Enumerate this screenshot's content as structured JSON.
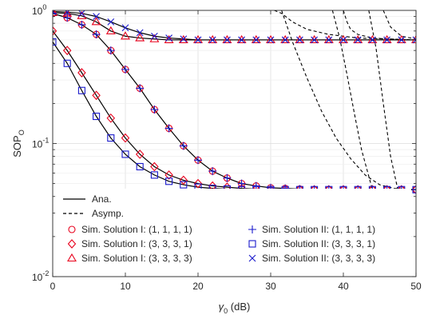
{
  "chart_data": {
    "type": "line",
    "xlabel": "γ₀ (dB)",
    "xlabel_symbol": "γ",
    "xlabel_sub": "0",
    "xlabel_unit": " (dB)",
    "ylabel": "SOP_O",
    "ylabel_main": "SOP",
    "ylabel_sub": "O",
    "xlim": [
      0,
      50
    ],
    "ylim": [
      0.01,
      1
    ],
    "yscale": "log",
    "grid": true,
    "legend_position": "bottom-left",
    "x_ticks": [
      0,
      10,
      20,
      30,
      40,
      50
    ],
    "x_tick_labels": [
      "0",
      "10",
      "20",
      "30",
      "40",
      "50"
    ],
    "y_ticks": [
      1,
      0.1,
      0.01
    ],
    "y_tick_labels": [
      {
        "base": "10",
        "exp": "0"
      },
      {
        "base": "10",
        "exp": "-1"
      },
      {
        "base": "10",
        "exp": "-2"
      }
    ],
    "x": [
      0,
      2,
      4,
      6,
      8,
      10,
      12,
      14,
      16,
      18,
      20,
      22,
      24,
      26,
      28,
      30,
      32,
      34,
      36,
      38,
      40,
      42,
      44,
      46,
      48,
      50
    ],
    "series": [
      {
        "name": "Ana.",
        "style": "analytic",
        "line": "solid",
        "curves": [
          {
            "key": "c1",
            "values": [
              0.96,
              0.95,
              0.91,
              0.82,
              0.7,
              0.64,
              0.62,
              0.61,
              0.6,
              0.6,
              0.6,
              0.6,
              0.6,
              0.6,
              0.6,
              0.6,
              0.6,
              0.6,
              0.6,
              0.6,
              0.6,
              0.6,
              0.6,
              0.6,
              0.6,
              0.6
            ]
          },
          {
            "key": "c2",
            "values": [
              0.98,
              0.97,
              0.95,
              0.9,
              0.82,
              0.74,
              0.68,
              0.64,
              0.62,
              0.61,
              0.6,
              0.6,
              0.6,
              0.6,
              0.6,
              0.6,
              0.6,
              0.6,
              0.6,
              0.6,
              0.6,
              0.6,
              0.6,
              0.6,
              0.6,
              0.6
            ]
          },
          {
            "key": "c3",
            "values": [
              0.95,
              0.88,
              0.78,
              0.66,
              0.5,
              0.36,
              0.26,
              0.18,
              0.13,
              0.096,
              0.075,
              0.062,
              0.055,
              0.05,
              0.048,
              0.0465,
              0.046,
              0.0455,
              0.045,
              0.045,
              0.045,
              0.045,
              0.045,
              0.045,
              0.045,
              0.045
            ]
          },
          {
            "key": "c4",
            "values": [
              0.7,
              0.5,
              0.34,
              0.23,
              0.155,
              0.11,
              0.083,
              0.067,
              0.058,
              0.053,
              0.05,
              0.048,
              0.047,
              0.046,
              0.0455,
              0.045,
              0.045,
              0.045,
              0.045,
              0.045,
              0.045,
              0.045,
              0.045,
              0.045,
              0.045,
              0.045
            ]
          },
          {
            "key": "c5",
            "values": [
              0.58,
              0.4,
              0.25,
              0.16,
              0.11,
              0.083,
              0.067,
              0.058,
              0.052,
              0.049,
              0.047,
              0.046,
              0.0455,
              0.045,
              0.045,
              0.045,
              0.045,
              0.045,
              0.045,
              0.045,
              0.045,
              0.045,
              0.045,
              0.045,
              0.045,
              0.045
            ]
          }
        ]
      },
      {
        "name": "Asymp.",
        "style": "asymptotic",
        "line": "dashed",
        "curves": [
          {
            "key": "a1",
            "x": [
              31.5,
              33,
              35,
              37,
              39,
              41,
              43,
              45,
              47,
              50
            ],
            "values": [
              1.0,
              0.58,
              0.31,
              0.175,
              0.11,
              0.077,
              0.058,
              0.049,
              0.046,
              0.045
            ]
          },
          {
            "key": "a2",
            "x": [
              30.5,
              31.5,
              33,
              35,
              38,
              42,
              46,
              50
            ],
            "values": [
              1.0,
              0.95,
              0.82,
              0.72,
              0.66,
              0.62,
              0.61,
              0.6
            ]
          },
          {
            "key": "a3",
            "x": [
              38.5,
              39.5,
              40.5,
              41.5,
              42.5,
              44
            ],
            "values": [
              1.0,
              0.62,
              0.33,
              0.17,
              0.09,
              0.045
            ]
          },
          {
            "key": "a4",
            "x": [
              40,
              40.5,
              41,
              42,
              44,
              46,
              50
            ],
            "values": [
              1.0,
              0.82,
              0.72,
              0.66,
              0.62,
              0.61,
              0.6
            ]
          },
          {
            "key": "a5",
            "x": [
              43.5,
              44.5,
              45.5,
              46.5,
              47.5
            ],
            "values": [
              1.0,
              0.52,
              0.2,
              0.08,
              0.045
            ]
          },
          {
            "key": "a6",
            "x": [
              45.5,
              46.5,
              48,
              50
            ],
            "values": [
              1.0,
              0.75,
              0.64,
              0.61
            ]
          }
        ]
      },
      {
        "name": "Sim. Solution I: (1, 1, 1, 1)",
        "marker": "circle",
        "color": "#e8001c",
        "curve": "c3"
      },
      {
        "name": "Sim. Solution I: (3, 3, 3, 1)",
        "marker": "diamond",
        "color": "#e8001c",
        "curve": "c4"
      },
      {
        "name": "Sim. Solution I: (3, 3, 3, 3)",
        "marker": "triangle",
        "color": "#e8001c",
        "curve": "c1"
      },
      {
        "name": "Sim. Solution II: (1, 1, 1, 1)",
        "marker": "plus",
        "color": "#1a1acc",
        "curve": "c3"
      },
      {
        "name": "Sim. Solution II: (3, 3, 3, 1)",
        "marker": "square",
        "color": "#1a1acc",
        "curve": "c5"
      },
      {
        "name": "Sim. Solution II: (3, 3, 3, 3)",
        "marker": "x",
        "color": "#1a1acc",
        "curve": "c2"
      }
    ]
  }
}
